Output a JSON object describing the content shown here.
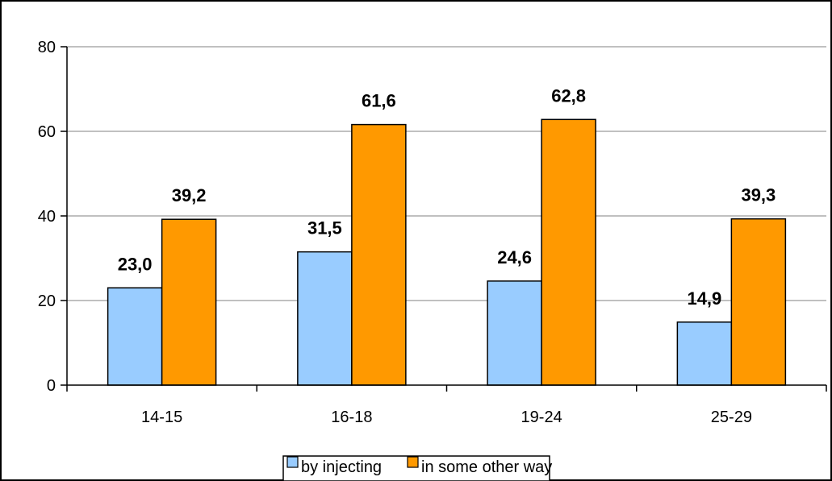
{
  "chart_data": {
    "type": "bar",
    "title": "",
    "xlabel": "",
    "ylabel": "",
    "categories": [
      "14-15",
      "16-18",
      "19-24",
      "25-29"
    ],
    "series": [
      {
        "name": "by injecting",
        "values": [
          23.0,
          31.5,
          24.6,
          14.9
        ],
        "labels": [
          "23,0",
          "31,5",
          "24,6",
          "14,9"
        ],
        "color": "#99ccff"
      },
      {
        "name": "in some other way",
        "values": [
          39.2,
          61.6,
          62.8,
          39.3
        ],
        "labels": [
          "39,2",
          "61,6",
          "62,8",
          "39,3"
        ],
        "color": "#ff9900"
      }
    ],
    "ylim": [
      0,
      80
    ],
    "yticks": [
      0,
      20,
      40,
      60,
      80
    ],
    "ytick_labels": [
      "0",
      "20",
      "40",
      "60",
      "80"
    ],
    "grid": true,
    "legend": "bottom"
  }
}
